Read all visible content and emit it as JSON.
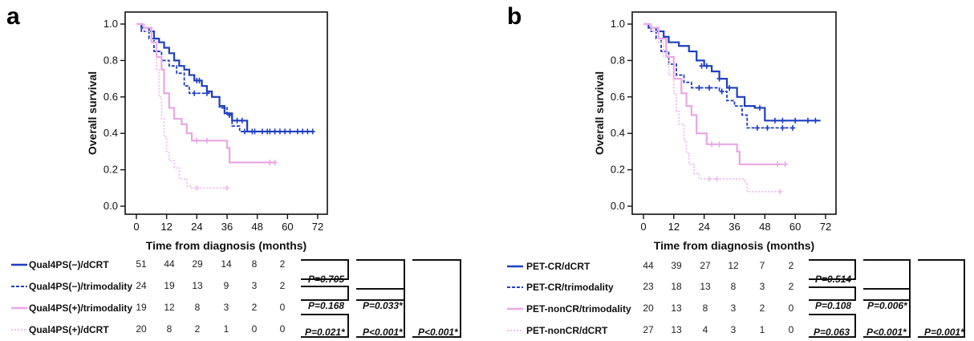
{
  "colors": {
    "dark_blue": "#1f3fbf",
    "pink": "#e9a7e3",
    "light_pink": "#f2bdee",
    "frame": "#111111"
  },
  "chart_data": [
    {
      "type": "line",
      "panel_label": "a",
      "ylabel": "Overall survival",
      "xlabel": "Time from diagnosis (months)",
      "xlim": [
        0,
        72
      ],
      "ylim": [
        0,
        1.0
      ],
      "x_ticks": [
        0,
        12,
        24,
        36,
        48,
        60,
        72
      ],
      "y_ticks": [
        0.0,
        0.2,
        0.4,
        0.6,
        0.8,
        1.0
      ],
      "x_tick_labels": [
        "0",
        "12",
        "24",
        "36",
        "48",
        "60",
        "72"
      ],
      "y_tick_labels": [
        "0.0",
        "0.2",
        "0.4",
        "0.6",
        "0.8",
        "1.0"
      ],
      "series": [
        {
          "name": "Qual4PS(−)/dCRT",
          "color": "#1f3fbf",
          "dash": "solid",
          "steps": [
            [
              0,
              1.0
            ],
            [
              2,
              0.98
            ],
            [
              5,
              0.96
            ],
            [
              7,
              0.92
            ],
            [
              9,
              0.9
            ],
            [
              11,
              0.87
            ],
            [
              13,
              0.84
            ],
            [
              15,
              0.8
            ],
            [
              17,
              0.77
            ],
            [
              19,
              0.75
            ],
            [
              21,
              0.72
            ],
            [
              23,
              0.69
            ],
            [
              26,
              0.66
            ],
            [
              28,
              0.63
            ],
            [
              30,
              0.6
            ],
            [
              33,
              0.55
            ],
            [
              35,
              0.51
            ],
            [
              38,
              0.47
            ],
            [
              44,
              0.41
            ],
            [
              70,
              0.41
            ]
          ],
          "censored": [
            [
              24,
              0.69
            ],
            [
              25,
              0.69
            ],
            [
              40,
              0.47
            ],
            [
              42,
              0.47
            ],
            [
              46,
              0.41
            ],
            [
              50,
              0.41
            ],
            [
              53,
              0.41
            ],
            [
              55,
              0.41
            ],
            [
              57,
              0.41
            ],
            [
              59,
              0.41
            ],
            [
              61,
              0.41
            ],
            [
              64,
              0.41
            ],
            [
              66,
              0.41
            ],
            [
              68,
              0.41
            ],
            [
              70,
              0.41
            ]
          ]
        },
        {
          "name": "Qual4PS(−)/trimodality",
          "color": "#1f3fbf",
          "dash": "dash",
          "steps": [
            [
              0,
              1.0
            ],
            [
              2,
              0.96
            ],
            [
              5,
              0.92
            ],
            [
              7,
              0.85
            ],
            [
              10,
              0.8
            ],
            [
              13,
              0.77
            ],
            [
              16,
              0.73
            ],
            [
              19,
              0.66
            ],
            [
              21,
              0.62
            ],
            [
              30,
              0.6
            ],
            [
              33,
              0.54
            ],
            [
              36,
              0.5
            ],
            [
              38,
              0.44
            ],
            [
              41,
              0.41
            ],
            [
              55,
              0.41
            ]
          ],
          "censored": [
            [
              23,
              0.62
            ],
            [
              28,
              0.62
            ],
            [
              37,
              0.5
            ],
            [
              43,
              0.41
            ],
            [
              47,
              0.41
            ],
            [
              52,
              0.41
            ],
            [
              55,
              0.41
            ]
          ]
        },
        {
          "name": "Qual4PS(+)/trimodality",
          "color": "#e9a7e3",
          "dash": "solid",
          "steps": [
            [
              0,
              1.0
            ],
            [
              3,
              0.98
            ],
            [
              6,
              0.9
            ],
            [
              8,
              0.82
            ],
            [
              10,
              0.75
            ],
            [
              11,
              0.62
            ],
            [
              13,
              0.54
            ],
            [
              15,
              0.48
            ],
            [
              18,
              0.45
            ],
            [
              20,
              0.4
            ],
            [
              22,
              0.36
            ],
            [
              36,
              0.32
            ],
            [
              37,
              0.24
            ],
            [
              55,
              0.24
            ]
          ],
          "censored": [
            [
              24,
              0.36
            ],
            [
              28,
              0.36
            ],
            [
              53,
              0.24
            ],
            [
              55,
              0.24
            ]
          ]
        },
        {
          "name": "Qual4PS(+)/dCRT",
          "color": "#f2bdee",
          "dash": "dot",
          "steps": [
            [
              0,
              1.0
            ],
            [
              3,
              0.96
            ],
            [
              6,
              0.9
            ],
            [
              8,
              0.75
            ],
            [
              9,
              0.6
            ],
            [
              10,
              0.48
            ],
            [
              11,
              0.38
            ],
            [
              12,
              0.3
            ],
            [
              13,
              0.25
            ],
            [
              15,
              0.21
            ],
            [
              17,
              0.15
            ],
            [
              20,
              0.11
            ],
            [
              22,
              0.1
            ],
            [
              36,
              0.1
            ]
          ],
          "censored": [
            [
              24,
              0.1
            ],
            [
              36,
              0.1
            ]
          ]
        }
      ],
      "risk_table": [
        [
          "51",
          "44",
          "29",
          "14",
          "8",
          "2"
        ],
        [
          "24",
          "19",
          "13",
          "9",
          "3",
          "2"
        ],
        [
          "19",
          "12",
          "8",
          "3",
          "2",
          "0"
        ],
        [
          "20",
          "8",
          "2",
          "1",
          "0",
          "0"
        ]
      ],
      "pvalues": {
        "p12": "P=0.705",
        "p23": "P=0.168",
        "p13": "P=0.033*",
        "p34": "P=0.021*",
        "p24": "P<0.001*",
        "p14": "P<0.001*"
      }
    },
    {
      "type": "line",
      "panel_label": "b",
      "ylabel": "Overall survival",
      "xlabel": "Time from diagnosis (months)",
      "xlim": [
        0,
        72
      ],
      "ylim": [
        0,
        1.0
      ],
      "x_ticks": [
        0,
        12,
        24,
        36,
        48,
        60,
        72
      ],
      "y_ticks": [
        0.0,
        0.2,
        0.4,
        0.6,
        0.8,
        1.0
      ],
      "x_tick_labels": [
        "0",
        "12",
        "24",
        "36",
        "48",
        "60",
        "72"
      ],
      "y_tick_labels": [
        "0.0",
        "0.2",
        "0.4",
        "0.6",
        "0.8",
        "1.0"
      ],
      "series": [
        {
          "name": "PET-CR/dCRT",
          "color": "#1f3fbf",
          "dash": "solid",
          "steps": [
            [
              0,
              1.0
            ],
            [
              2,
              0.98
            ],
            [
              5,
              0.96
            ],
            [
              8,
              0.93
            ],
            [
              10,
              0.9
            ],
            [
              14,
              0.88
            ],
            [
              18,
              0.85
            ],
            [
              21,
              0.8
            ],
            [
              24,
              0.77
            ],
            [
              27,
              0.74
            ],
            [
              30,
              0.7
            ],
            [
              33,
              0.65
            ],
            [
              37,
              0.6
            ],
            [
              40,
              0.55
            ],
            [
              44,
              0.54
            ],
            [
              48,
              0.47
            ],
            [
              70,
              0.47
            ]
          ],
          "censored": [
            [
              23,
              0.77
            ],
            [
              25,
              0.77
            ],
            [
              30,
              0.7
            ],
            [
              34,
              0.65
            ],
            [
              46,
              0.54
            ],
            [
              52,
              0.47
            ],
            [
              55,
              0.47
            ],
            [
              60,
              0.47
            ],
            [
              65,
              0.47
            ],
            [
              68,
              0.47
            ]
          ]
        },
        {
          "name": "PET-CR/trimodality",
          "color": "#1f3fbf",
          "dash": "dash",
          "steps": [
            [
              0,
              1.0
            ],
            [
              3,
              0.96
            ],
            [
              5,
              0.92
            ],
            [
              7,
              0.85
            ],
            [
              10,
              0.78
            ],
            [
              13,
              0.72
            ],
            [
              16,
              0.68
            ],
            [
              19,
              0.65
            ],
            [
              30,
              0.63
            ],
            [
              33,
              0.58
            ],
            [
              36,
              0.55
            ],
            [
              39,
              0.5
            ],
            [
              41,
              0.43
            ],
            [
              60,
              0.43
            ]
          ],
          "censored": [
            [
              22,
              0.65
            ],
            [
              26,
              0.65
            ],
            [
              31,
              0.63
            ],
            [
              45,
              0.43
            ],
            [
              49,
              0.43
            ],
            [
              55,
              0.43
            ],
            [
              59,
              0.43
            ]
          ]
        },
        {
          "name": "PET-nonCR/trimodality",
          "color": "#e9a7e3",
          "dash": "solid",
          "steps": [
            [
              0,
              1.0
            ],
            [
              3,
              0.98
            ],
            [
              6,
              0.92
            ],
            [
              9,
              0.82
            ],
            [
              12,
              0.7
            ],
            [
              15,
              0.62
            ],
            [
              17,
              0.55
            ],
            [
              19,
              0.5
            ],
            [
              21,
              0.4
            ],
            [
              25,
              0.34
            ],
            [
              37,
              0.3
            ],
            [
              38,
              0.23
            ],
            [
              55,
              0.23
            ]
          ],
          "censored": [
            [
              27,
              0.34
            ],
            [
              30,
              0.34
            ],
            [
              53,
              0.23
            ],
            [
              56,
              0.23
            ]
          ]
        },
        {
          "name": "PET-nonCR/dCRT",
          "color": "#f2bdee",
          "dash": "dot",
          "steps": [
            [
              0,
              1.0
            ],
            [
              3,
              0.96
            ],
            [
              6,
              0.9
            ],
            [
              8,
              0.82
            ],
            [
              10,
              0.72
            ],
            [
              12,
              0.62
            ],
            [
              13,
              0.52
            ],
            [
              14,
              0.45
            ],
            [
              16,
              0.36
            ],
            [
              17,
              0.29
            ],
            [
              18,
              0.23
            ],
            [
              20,
              0.18
            ],
            [
              22,
              0.15
            ],
            [
              40,
              0.13
            ],
            [
              41,
              0.08
            ],
            [
              54,
              0.08
            ]
          ],
          "censored": [
            [
              26,
              0.15
            ],
            [
              29,
              0.15
            ],
            [
              54,
              0.08
            ]
          ]
        }
      ],
      "risk_table": [
        [
          "44",
          "39",
          "27",
          "12",
          "7",
          "2"
        ],
        [
          "23",
          "18",
          "13",
          "8",
          "3",
          "2"
        ],
        [
          "20",
          "13",
          "8",
          "3",
          "2",
          "0"
        ],
        [
          "27",
          "13",
          "4",
          "3",
          "1",
          "0"
        ]
      ],
      "pvalues": {
        "p12": "P=0.514",
        "p23": "P=0.108",
        "p13": "P=0.006*",
        "p34": "P=0.063",
        "p24": "P<0.001*",
        "p14": "P=0.001*"
      }
    }
  ]
}
